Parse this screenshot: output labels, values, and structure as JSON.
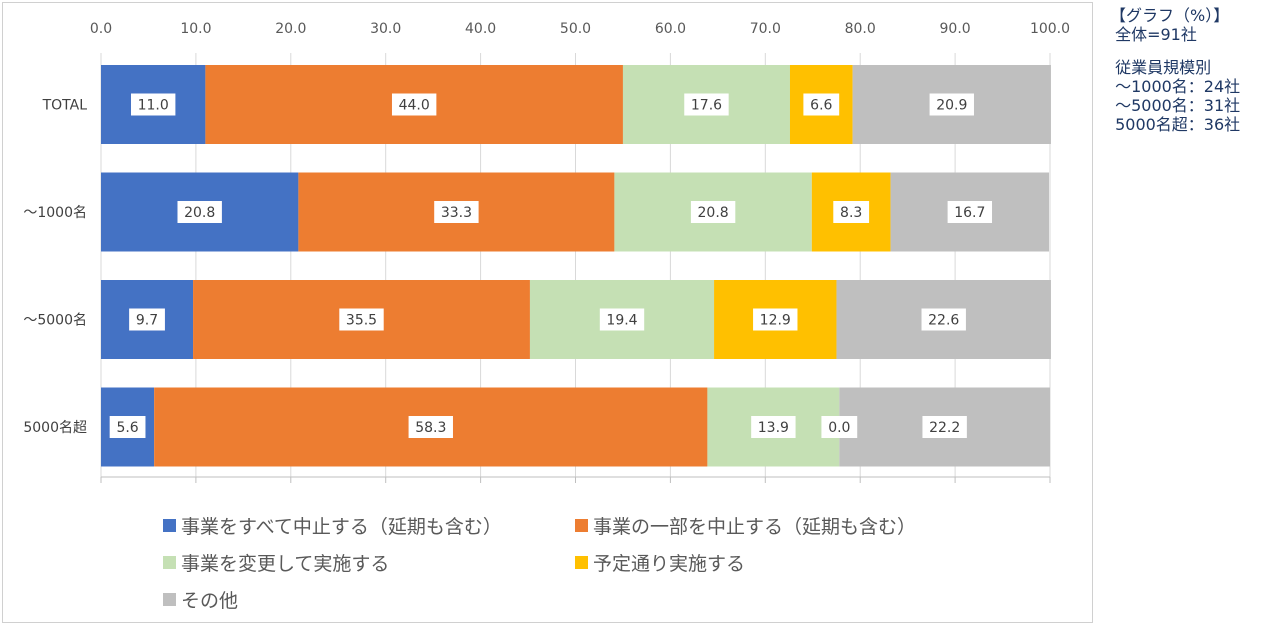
{
  "note": {
    "title": "【グラフ（%）】",
    "total": " 全体=91社",
    "breakdown_title": " 従業員規模別",
    "breakdown": [
      " ～1000名：24社",
      " ～5000名：31社",
      " 5000名超：36社"
    ]
  },
  "chart_data": {
    "type": "bar",
    "orientation": "horizontal",
    "stacked": true,
    "title": "",
    "xlabel": "",
    "ylabel": "",
    "xlim": [
      0,
      100
    ],
    "x_ticks": [
      "0.0",
      "10.0",
      "20.0",
      "30.0",
      "40.0",
      "50.0",
      "60.0",
      "70.0",
      "80.0",
      "90.0",
      "100.0"
    ],
    "x_axis_position": "top",
    "grid": true,
    "legend_position": "bottom",
    "categories": [
      "TOTAL",
      "～1000名",
      "～5000名",
      "5000名超"
    ],
    "series": [
      {
        "name": "事業をすべて中止する（延期も含む）",
        "color": "#4472c4",
        "values": [
          11.0,
          20.8,
          9.7,
          5.6
        ],
        "labels": [
          "11.0",
          "20.8",
          "9.7",
          "5.6"
        ]
      },
      {
        "name": "事業の一部を中止する（延期も含む）",
        "color": "#ed7d31",
        "values": [
          44.0,
          33.3,
          35.5,
          58.3
        ],
        "labels": [
          "44.0",
          "33.3",
          "35.5",
          "58.3"
        ]
      },
      {
        "name": "事業を変更して実施する",
        "color": "#c5e0b4",
        "values": [
          17.6,
          20.8,
          19.4,
          13.9
        ],
        "labels": [
          "17.6",
          "20.8",
          "19.4",
          "13.9"
        ]
      },
      {
        "name": "予定通り実施する",
        "color": "#ffc000",
        "values": [
          6.6,
          8.3,
          12.9,
          0.0
        ],
        "labels": [
          "6.6",
          "8.3",
          "12.9",
          "0.0"
        ]
      },
      {
        "name": "その他",
        "color": "#bfbfbf",
        "values": [
          20.9,
          16.7,
          22.6,
          22.2
        ],
        "labels": [
          "20.9",
          "16.7",
          "22.6",
          "22.2"
        ]
      }
    ]
  }
}
